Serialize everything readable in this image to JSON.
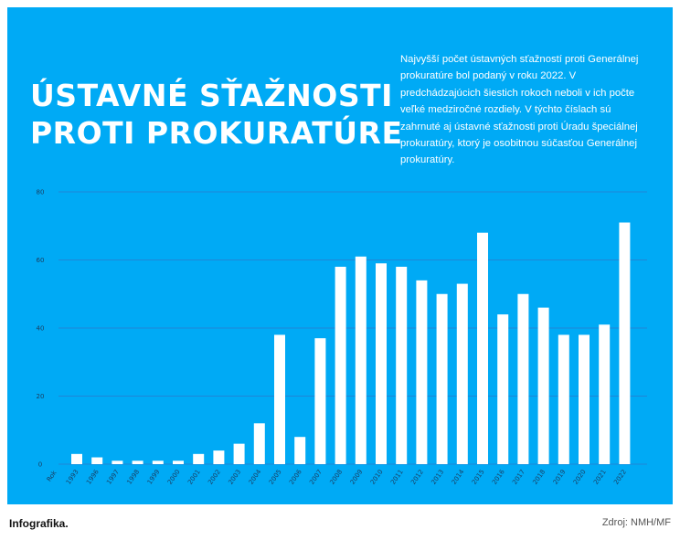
{
  "chart_data": {
    "type": "bar",
    "title": [
      "ÚSTAVNÉ SŤAŽNOSTI",
      "PROTI PROKURATÚRE"
    ],
    "description": "Najvyšší počet ústavných sťažností proti Generálnej prokuratúre bol podaný v roku 2022. V predchádzajúcich šiestich rokoch neboli v ich počte veľké medziročné rozdiely. V týchto číslach sú zahrnuté aj ústavné sťažnosti proti Úradu špeciálnej prokuratúry, ktorý je osobitnou súčasťou Generálnej prokuratúry.",
    "xlabel": "Rok",
    "categories": [
      "1993",
      "1996",
      "1997",
      "1998",
      "1999",
      "2000",
      "2001",
      "2002",
      "2003",
      "2004",
      "2005",
      "2006",
      "2007",
      "2008",
      "2009",
      "2010",
      "2011",
      "2012",
      "2013",
      "2014",
      "2015",
      "2016",
      "2017",
      "2018",
      "2019",
      "2020",
      "2021",
      "2022"
    ],
    "values": [
      3,
      2,
      1,
      1,
      1,
      1,
      3,
      4,
      6,
      12,
      38,
      8,
      37,
      58,
      61,
      59,
      58,
      54,
      50,
      53,
      68,
      44,
      50,
      46,
      38,
      38,
      41,
      71
    ],
    "yticks": [
      0,
      20,
      40,
      60,
      80
    ],
    "ylim": [
      0,
      80
    ],
    "grid": true,
    "colors": {
      "background": "#00aaf5",
      "bar": "#ffffff",
      "gridline": "#1f86d6",
      "text": "#ffffff"
    }
  },
  "footer": {
    "label": "Infografika.",
    "source": "Zdroj: NMH/MF"
  }
}
